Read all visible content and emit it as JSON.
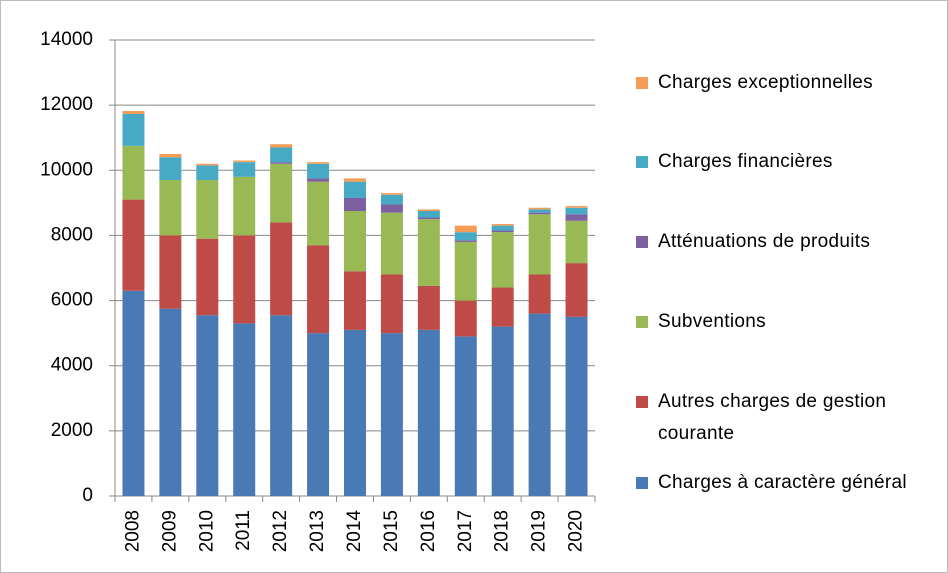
{
  "chart_data": {
    "type": "stacked-bar",
    "categories": [
      "2008",
      "2009",
      "2010",
      "2011",
      "2012",
      "2013",
      "2014",
      "2015",
      "2016",
      "2017",
      "2018",
      "2019",
      "2020"
    ],
    "series": [
      {
        "name": "Charges à caractère général",
        "color": "#4a7ab5",
        "values": [
          6300,
          5750,
          5550,
          5300,
          5550,
          5000,
          5100,
          5000,
          5100,
          4900,
          5200,
          5600,
          5500
        ]
      },
      {
        "name": "Autres charges de gestion courante",
        "color": "#be4b48",
        "values": [
          2800,
          2250,
          2350,
          2700,
          2850,
          2700,
          1800,
          1800,
          1350,
          1100,
          1200,
          1200,
          1650
        ]
      },
      {
        "name": "Subventions",
        "color": "#98b954",
        "values": [
          1650,
          1700,
          1800,
          1800,
          1800,
          1950,
          1850,
          1900,
          2050,
          1800,
          1700,
          1850,
          1300
        ]
      },
      {
        "name": "Atténuations de produits",
        "color": "#7d60a0",
        "values": [
          0,
          0,
          0,
          0,
          50,
          100,
          400,
          250,
          50,
          50,
          50,
          50,
          200
        ]
      },
      {
        "name": "Charges financières",
        "color": "#46aac5",
        "values": [
          980,
          700,
          450,
          450,
          450,
          450,
          500,
          300,
          200,
          250,
          150,
          100,
          200
        ]
      },
      {
        "name": "Charges exceptionnelles",
        "color": "#f59d56",
        "values": [
          90,
          100,
          50,
          50,
          100,
          50,
          100,
          50,
          50,
          200,
          50,
          50,
          50
        ]
      }
    ],
    "ylim": [
      0,
      14000
    ],
    "yticks": [
      0,
      2000,
      4000,
      6000,
      8000,
      10000,
      12000,
      14000
    ],
    "grid": true
  }
}
